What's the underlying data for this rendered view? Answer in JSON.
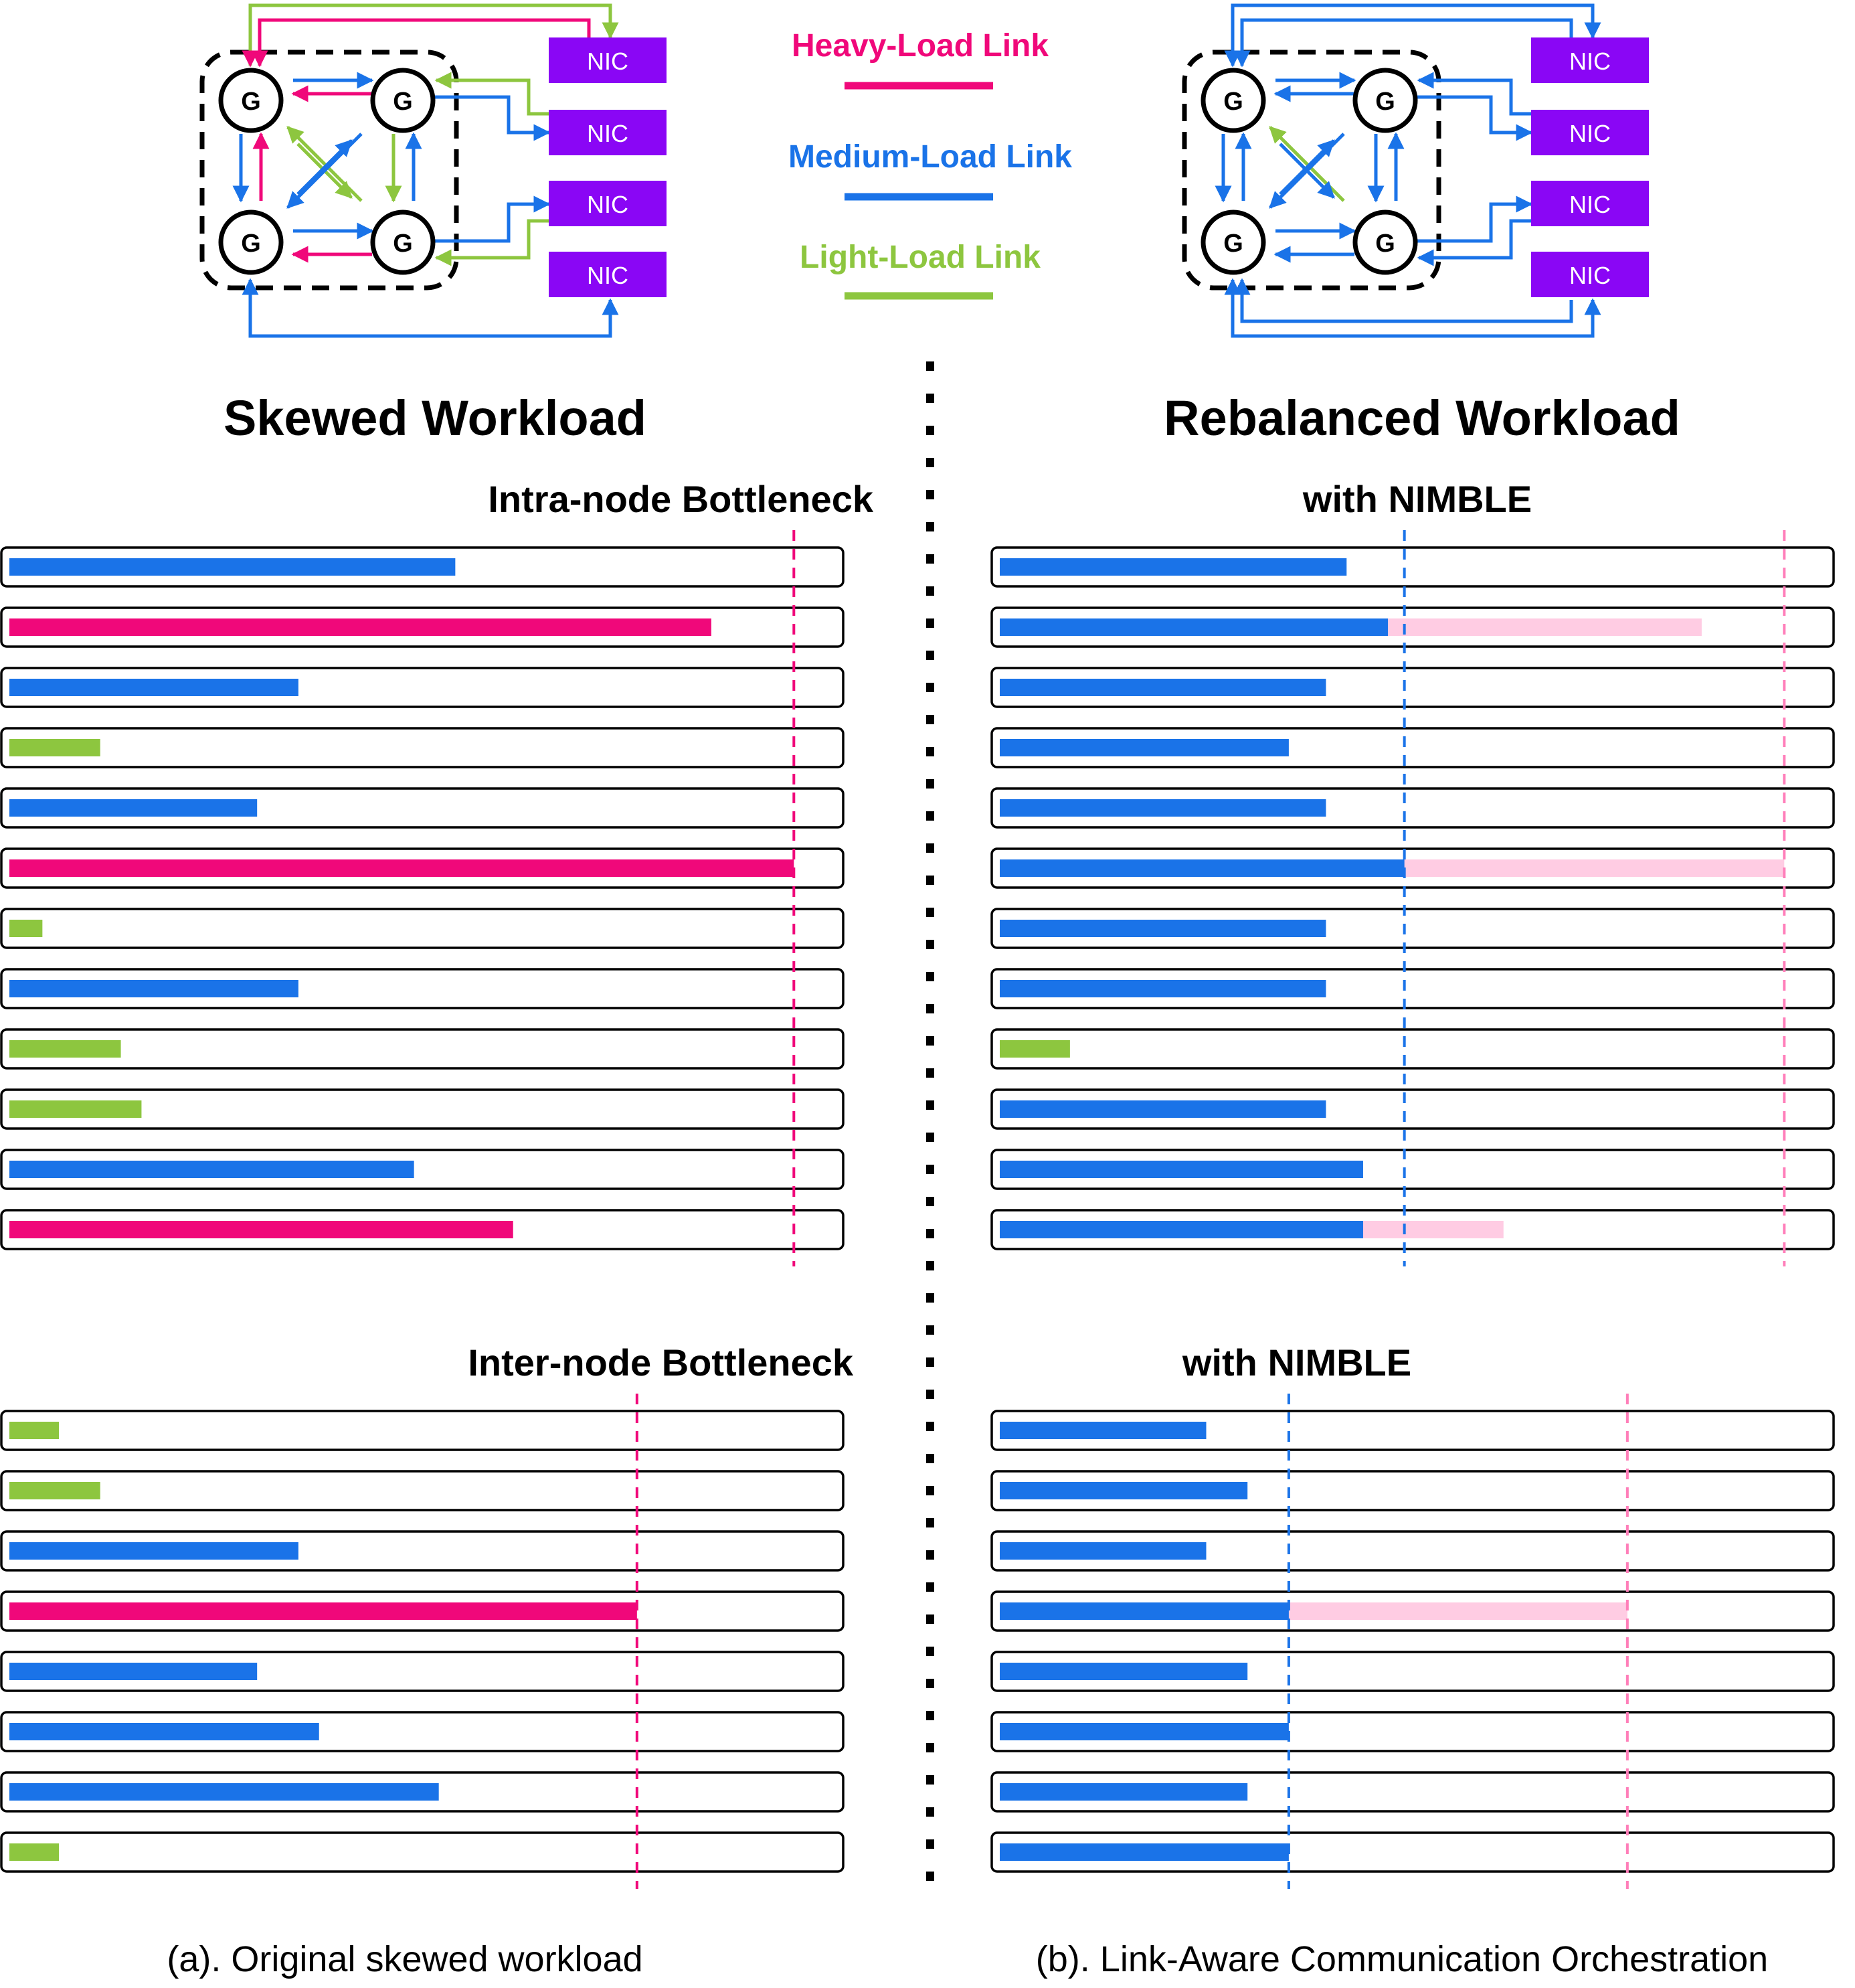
{
  "colors": {
    "heavy": "#f0087a",
    "medium": "#1a73e8",
    "light": "#8dc63f",
    "nic": "#8a06f5",
    "shifted": "#ffcce3"
  },
  "legend": {
    "heavy": "Heavy-Load Link",
    "medium": "Medium-Load Link",
    "light": "Light-Load Link"
  },
  "topology": {
    "gpu_label": "G",
    "nic_label": "NIC"
  },
  "left": {
    "title": "Skewed Workload",
    "intra_label": "Intra-node Bottleneck",
    "inter_label": "Inter-node Bottleneck",
    "caption": "(a). Original skewed workload"
  },
  "right": {
    "title": "Rebalanced Workload",
    "intra_label": "with NIMBLE",
    "inter_label": "with NIMBLE",
    "caption": "(b). Link-Aware Communication Orchestration"
  },
  "chart_data": [
    {
      "type": "bar",
      "panel": "skewed-intra-node",
      "bars": [
        {
          "load": "medium",
          "value": 0.54
        },
        {
          "load": "heavy",
          "value": 0.85
        },
        {
          "load": "medium",
          "value": 0.35
        },
        {
          "load": "light",
          "value": 0.11
        },
        {
          "load": "medium",
          "value": 0.3
        },
        {
          "load": "heavy",
          "value": 0.95
        },
        {
          "load": "light",
          "value": 0.04
        },
        {
          "load": "medium",
          "value": 0.35
        },
        {
          "load": "light",
          "value": 0.135
        },
        {
          "load": "light",
          "value": 0.16
        },
        {
          "load": "medium",
          "value": 0.49
        },
        {
          "load": "heavy",
          "value": 0.61
        }
      ],
      "bottleneck": 0.95
    },
    {
      "type": "bar",
      "panel": "rebalanced-intra-node",
      "bars": [
        {
          "load": "medium",
          "value": 0.42,
          "original": null
        },
        {
          "load": "medium",
          "value": 0.47,
          "original": 0.85
        },
        {
          "load": "medium",
          "value": 0.395,
          "original": null
        },
        {
          "load": "medium",
          "value": 0.35,
          "original": null
        },
        {
          "load": "medium",
          "value": 0.395,
          "original": null
        },
        {
          "load": "medium",
          "value": 0.49,
          "original": 0.95
        },
        {
          "load": "medium",
          "value": 0.395,
          "original": null
        },
        {
          "load": "medium",
          "value": 0.395,
          "original": null
        },
        {
          "load": "light",
          "value": 0.085,
          "original": null
        },
        {
          "load": "medium",
          "value": 0.395,
          "original": null
        },
        {
          "load": "medium",
          "value": 0.44,
          "original": null
        },
        {
          "load": "medium",
          "value": 0.44,
          "original": 0.61
        }
      ],
      "new_bottleneck": 0.49,
      "old_bottleneck": 0.95
    },
    {
      "type": "bar",
      "panel": "skewed-inter-node",
      "bars": [
        {
          "load": "light",
          "value": 0.06
        },
        {
          "load": "light",
          "value": 0.11
        },
        {
          "load": "medium",
          "value": 0.35
        },
        {
          "load": "heavy",
          "value": 0.76
        },
        {
          "load": "medium",
          "value": 0.3
        },
        {
          "load": "medium",
          "value": 0.375
        },
        {
          "load": "medium",
          "value": 0.52
        },
        {
          "load": "light",
          "value": 0.06
        }
      ],
      "bottleneck": 0.76
    },
    {
      "type": "bar",
      "panel": "rebalanced-inter-node",
      "bars": [
        {
          "load": "medium",
          "value": 0.25,
          "original": null
        },
        {
          "load": "medium",
          "value": 0.3,
          "original": null
        },
        {
          "load": "medium",
          "value": 0.25,
          "original": null
        },
        {
          "load": "medium",
          "value": 0.35,
          "original": 0.76
        },
        {
          "load": "medium",
          "value": 0.3,
          "original": null
        },
        {
          "load": "medium",
          "value": 0.35,
          "original": null
        },
        {
          "load": "medium",
          "value": 0.3,
          "original": null
        },
        {
          "load": "medium",
          "value": 0.35,
          "original": null
        }
      ],
      "new_bottleneck": 0.35,
      "old_bottleneck": 0.76
    }
  ]
}
